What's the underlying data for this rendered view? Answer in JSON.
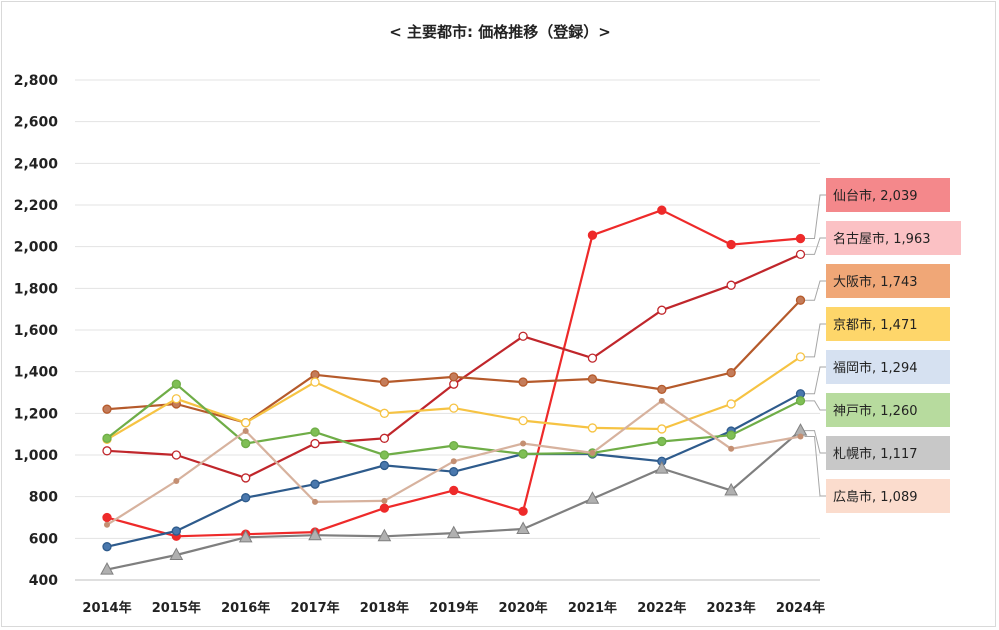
{
  "chart_data": {
    "type": "line",
    "title": "< 主要都市: 価格推移（登録）>",
    "xlabel": "",
    "ylabel": "",
    "categories": [
      "2014年",
      "2015年",
      "2016年",
      "2017年",
      "2018年",
      "2019年",
      "2020年",
      "2021年",
      "2022年",
      "2023年",
      "2024年"
    ],
    "ylim": [
      400,
      2800
    ],
    "yticks": [
      400,
      600,
      800,
      1000,
      1200,
      1400,
      1600,
      1800,
      2000,
      2200,
      2400,
      2600,
      2800
    ],
    "ytick_labels": [
      "400",
      "600",
      "800",
      "1,000",
      "1,200",
      "1,400",
      "1,600",
      "1,800",
      "2,000",
      "2,200",
      "2,400",
      "2,600",
      "2,800"
    ],
    "grid": true,
    "legend": "end-labels-right",
    "series": [
      {
        "name": "仙台市",
        "label": "仙台市, 2,039",
        "color": "#ee2a2a",
        "label_bg": "#f4888b",
        "marker": "circle",
        "marker_fill": "#ee2a2a",
        "values": [
          700,
          610,
          620,
          630,
          745,
          830,
          730,
          2055,
          2175,
          2010,
          2039
        ]
      },
      {
        "name": "名古屋市",
        "label": "名古屋市, 1,963",
        "color": "#c0262b",
        "label_bg": "#fbc1c4",
        "marker": "circle",
        "marker_fill": "#ffffff",
        "values": [
          1020,
          1000,
          890,
          1055,
          1080,
          1340,
          1570,
          1465,
          1695,
          1815,
          1963
        ]
      },
      {
        "name": "大阪市",
        "label": "大阪市, 1,743",
        "color": "#b55a2b",
        "label_bg": "#f0a777",
        "marker": "circle",
        "marker_fill": "#c47c5a",
        "values": [
          1220,
          1245,
          1155,
          1385,
          1350,
          1375,
          1350,
          1365,
          1315,
          1395,
          1743
        ]
      },
      {
        "name": "京都市",
        "label": "京都市, 1,471",
        "color": "#f6c343",
        "label_bg": "#fed66a",
        "marker": "circle",
        "marker_fill": "#ffffff",
        "values": [
          1075,
          1270,
          1155,
          1350,
          1200,
          1225,
          1165,
          1130,
          1125,
          1245,
          1471
        ]
      },
      {
        "name": "福岡市",
        "label": "福岡市, 1,294",
        "color": "#2e5b8c",
        "label_bg": "#d6e1f1",
        "marker": "circle",
        "marker_fill": "#4a78ad",
        "values": [
          560,
          635,
          795,
          860,
          950,
          920,
          1005,
          1005,
          970,
          1115,
          1294
        ]
      },
      {
        "name": "神戸市",
        "label": "神戸市, 1,260",
        "color": "#6fad47",
        "label_bg": "#b7db9e",
        "marker": "circle",
        "marker_fill": "#7fbf55",
        "values": [
          1080,
          1340,
          1055,
          1110,
          1000,
          1045,
          1005,
          1010,
          1065,
          1095,
          1260
        ]
      },
      {
        "name": "札幌市",
        "label": "札幌市, 1,117",
        "color": "#7f7f7f",
        "label_bg": "#c8c8c8",
        "marker": "triangle",
        "marker_fill": "#b0b0b0",
        "values": [
          450,
          520,
          605,
          615,
          610,
          625,
          645,
          790,
          935,
          830,
          1117
        ]
      },
      {
        "name": "広島市",
        "label": "広島市, 1,089",
        "color": "#d7b29e",
        "label_bg": "#fbdccd",
        "marker": "dot",
        "marker_fill": "#c48f72",
        "values": [
          665,
          875,
          1115,
          775,
          780,
          970,
          1055,
          1010,
          1260,
          1030,
          1089
        ]
      }
    ]
  }
}
